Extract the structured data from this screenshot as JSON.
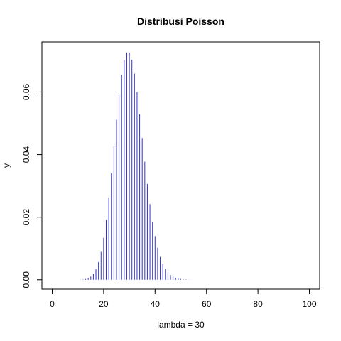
{
  "chart_data": {
    "type": "bar",
    "title": "Distribusi Poisson",
    "xlabel": "lambda = 30",
    "ylabel": "y",
    "distribution": "Poisson",
    "lambda": 30,
    "x_range": [
      0,
      100
    ],
    "xlim": [
      -4,
      104
    ],
    "ylim": [
      -0.003,
      0.076
    ],
    "xticks": [
      0,
      20,
      40,
      60,
      80,
      100
    ],
    "yticks": [
      0.0,
      0.02,
      0.04,
      0.06
    ],
    "ytick_labels": [
      "0.00",
      "0.02",
      "0.04",
      "0.06"
    ],
    "grid": false,
    "legend": "none",
    "color": "#3333cc"
  }
}
